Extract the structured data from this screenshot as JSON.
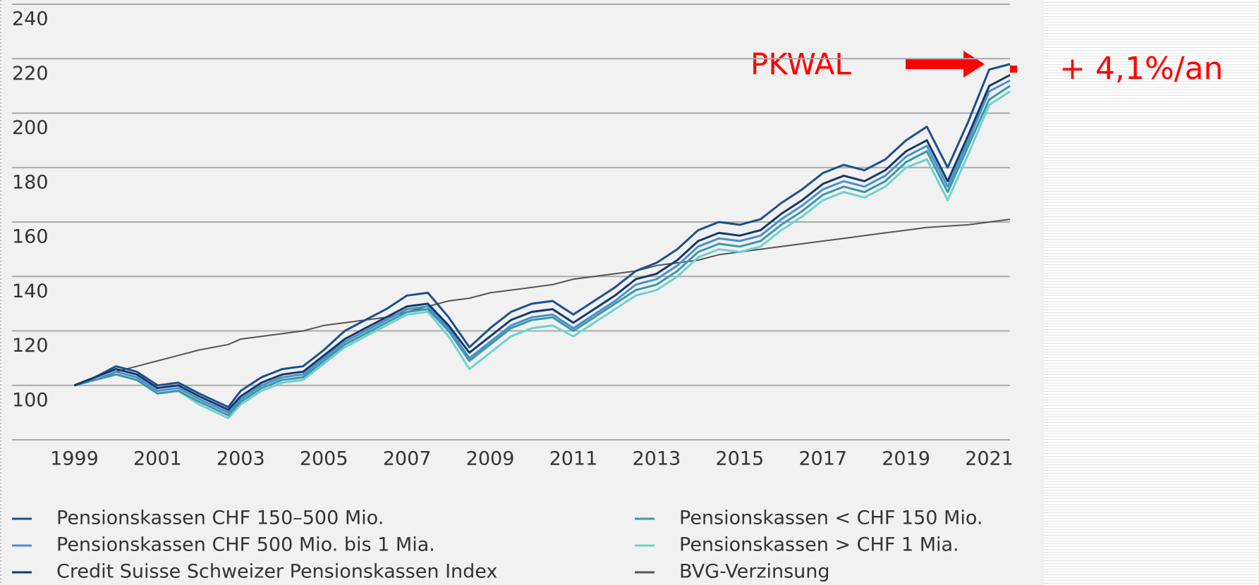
{
  "chart_data": {
    "type": "line",
    "x": [
      1999,
      1999.5,
      2000,
      2000.5,
      2001,
      2001.5,
      2002,
      2002.7,
      2003,
      2003.5,
      2004,
      2004.5,
      2005,
      2005.5,
      2006,
      2006.5,
      2007,
      2007.5,
      2008,
      2008.5,
      2009,
      2009.5,
      2010,
      2010.5,
      2011,
      2011.5,
      2012,
      2012.5,
      2013,
      2013.5,
      2014,
      2014.5,
      2015,
      2015.5,
      2016,
      2016.5,
      2017,
      2017.5,
      2018,
      2018.5,
      2019,
      2019.5,
      2020,
      2020.5,
      2021,
      2021.5
    ],
    "series": [
      {
        "name": "Pensionskassen CHF 150–500 Mio.",
        "color": "#1d4f8c",
        "values": [
          100,
          103,
          107,
          105,
          100,
          101,
          97,
          92,
          98,
          103,
          106,
          107,
          113,
          120,
          124,
          128,
          133,
          134,
          125,
          114,
          121,
          127,
          130,
          131,
          126,
          131,
          136,
          142,
          145,
          150,
          157,
          160,
          159,
          161,
          167,
          172,
          178,
          181,
          179,
          183,
          190,
          195,
          180,
          197,
          216,
          218
        ]
      },
      {
        "name": "Pensionskassen CHF 500 Mio. bis 1 Mia.",
        "color": "#4a8fd0",
        "values": [
          100,
          102,
          105,
          103,
          98,
          99,
          95,
          90,
          95,
          100,
          103,
          104,
          110,
          116,
          120,
          124,
          128,
          129,
          121,
          110,
          116,
          122,
          125,
          126,
          121,
          126,
          131,
          137,
          139,
          144,
          151,
          154,
          153,
          155,
          161,
          166,
          172,
          175,
          173,
          177,
          184,
          188,
          173,
          190,
          208,
          212
        ]
      },
      {
        "name": "Credit Suisse Schweizer Pensionskassen Index",
        "color": "#123a6a",
        "values": [
          100,
          103,
          106,
          104,
          99,
          100,
          96,
          91,
          96,
          101,
          104,
          105,
          111,
          117,
          121,
          125,
          129,
          130,
          122,
          112,
          118,
          124,
          127,
          128,
          123,
          128,
          133,
          139,
          141,
          146,
          153,
          156,
          155,
          157,
          163,
          168,
          174,
          177,
          175,
          179,
          186,
          190,
          175,
          192,
          210,
          214
        ]
      },
      {
        "name": "Pensionskassen < CHF 150 Mio.",
        "color": "#3a9aa0",
        "values": [
          100,
          102,
          104,
          102,
          97,
          98,
          94,
          89,
          94,
          99,
          102,
          103,
          109,
          115,
          119,
          123,
          127,
          128,
          120,
          109,
          115,
          121,
          124,
          125,
          120,
          125,
          130,
          135,
          137,
          142,
          149,
          152,
          151,
          153,
          159,
          164,
          170,
          173,
          171,
          175,
          182,
          186,
          171,
          188,
          205,
          210
        ]
      },
      {
        "name": "Pensionskassen > CHF 1 Mia.",
        "color": "#6fd0d0",
        "values": [
          100,
          102,
          104,
          102,
          97,
          98,
          93,
          88,
          93,
          98,
          101,
          102,
          108,
          114,
          118,
          122,
          126,
          127,
          118,
          106,
          112,
          118,
          121,
          122,
          118,
          123,
          128,
          133,
          135,
          140,
          147,
          150,
          149,
          151,
          157,
          162,
          168,
          171,
          169,
          173,
          180,
          183,
          168,
          185,
          203,
          208
        ]
      },
      {
        "name": "BVG-Verzinsung",
        "color": "#555555",
        "values": [
          100,
          102,
          105,
          107,
          109,
          111,
          113,
          115,
          117,
          118,
          119,
          120,
          122,
          123,
          124,
          125,
          127,
          129,
          131,
          132,
          134,
          135,
          136,
          137,
          139,
          140,
          141,
          142,
          144,
          145,
          146,
          148,
          149,
          150,
          151,
          152,
          153,
          154,
          155,
          156,
          157,
          158,
          158.5,
          159,
          160,
          161
        ]
      }
    ],
    "xlim": [
      1997.5,
      2021.5
    ],
    "xticks": [
      1999,
      2001,
      2003,
      2005,
      2007,
      2009,
      2011,
      2013,
      2015,
      2017,
      2019,
      2021
    ],
    "ylim": [
      80,
      240
    ],
    "yticks": [
      100,
      120,
      140,
      160,
      180,
      200,
      220,
      240
    ],
    "grid": true,
    "annotations": [
      {
        "text": "PKWAL",
        "color": "#ff0000"
      },
      {
        "text": "+ 4,1%/an",
        "color": "#ff0000"
      }
    ]
  }
}
